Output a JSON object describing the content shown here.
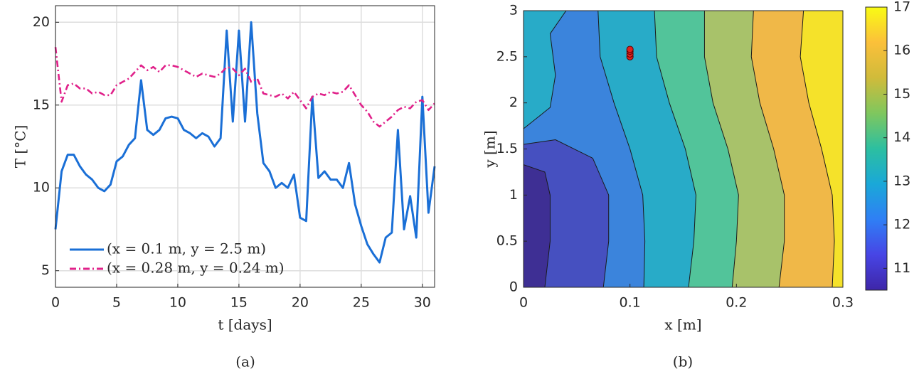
{
  "chart_data": [
    {
      "type": "line",
      "y_label": "T [°C]",
      "x_label": "t [days]",
      "caption": "(a)",
      "xlim": [
        0,
        31
      ],
      "ylim": [
        4,
        21
      ],
      "xticks": [
        0,
        5,
        10,
        15,
        20,
        25,
        30
      ],
      "yticks": [
        5,
        10,
        15,
        20
      ],
      "grid": true,
      "legend": "lower left",
      "x": [
        0,
        0.5,
        1,
        1.5,
        2,
        2.5,
        3,
        3.5,
        4,
        4.5,
        5,
        5.5,
        6,
        6.5,
        7,
        7.5,
        8,
        8.5,
        9,
        9.5,
        10,
        10.5,
        11,
        11.5,
        12,
        12.5,
        13,
        13.5,
        14,
        14.5,
        15,
        15.5,
        16,
        16.5,
        17,
        17.5,
        18,
        18.5,
        19,
        19.5,
        20,
        20.5,
        21,
        21.5,
        22,
        22.5,
        23,
        23.5,
        24,
        24.5,
        25,
        25.5,
        26,
        26.5,
        27,
        27.5,
        28,
        28.5,
        29,
        29.5,
        30,
        30.5,
        31
      ],
      "series": [
        {
          "name": "(x = 0.1 m, y = 2.5 m)",
          "color": "#1a6fd6",
          "style": "solid",
          "values": [
            7.5,
            11,
            12,
            12,
            11.3,
            10.8,
            10.5,
            10,
            9.8,
            10.2,
            11.6,
            11.9,
            12.6,
            13,
            16.5,
            13.5,
            13.2,
            13.5,
            14.2,
            14.3,
            14.2,
            13.5,
            13.3,
            13,
            13.3,
            13.1,
            12.5,
            13,
            19.5,
            14,
            19.5,
            14,
            20,
            14.5,
            11.5,
            11,
            10,
            10.3,
            10,
            10.8,
            8.2,
            8,
            15.5,
            10.6,
            11,
            10.5,
            10.5,
            10,
            11.5,
            9,
            7.7,
            6.6,
            6,
            5.5,
            7,
            7.3,
            13.5,
            7.5,
            9.5,
            7,
            15.5,
            8.5,
            11.3
          ]
        },
        {
          "name": "(x = 0.28 m, y = 0.24 m)",
          "color": "#e0218a",
          "style": "dashdot",
          "values": [
            18.5,
            15.2,
            16.2,
            16.3,
            16,
            16,
            15.7,
            15.8,
            15.6,
            15.6,
            16.2,
            16.4,
            16.6,
            17,
            17.4,
            17.1,
            17.3,
            17,
            17.4,
            17.4,
            17.3,
            17.1,
            16.9,
            16.7,
            16.9,
            16.8,
            16.7,
            16.9,
            17.3,
            17.2,
            16.8,
            17.2,
            16.4,
            16.6,
            15.7,
            15.6,
            15.5,
            15.7,
            15.4,
            15.8,
            15.3,
            14.8,
            15.5,
            15.7,
            15.6,
            15.8,
            15.7,
            15.8,
            16.2,
            15.6,
            15,
            14.6,
            14,
            13.7,
            14,
            14.3,
            14.7,
            14.9,
            14.8,
            15.2,
            15.3,
            14.7,
            15.1
          ]
        }
      ]
    },
    {
      "type": "contour",
      "x_label": "x [m]",
      "y_label": "y [m]",
      "caption": "(b)",
      "xlim": [
        0,
        0.3
      ],
      "ylim": [
        0,
        3
      ],
      "xticks": [
        0,
        0.1,
        0.2,
        0.3
      ],
      "yticks": [
        0,
        0.5,
        1,
        1.5,
        2,
        2.5,
        3
      ],
      "base_color": "#3e2f94",
      "regions": [
        {
          "level": 11,
          "color": "#4650c0",
          "x": [
            0.02,
            0.025,
            0.025,
            0.02,
            0,
            0,
            0.3,
            0.3
          ],
          "y": [
            0,
            0.5,
            1,
            1.25,
            1.33,
            3,
            3,
            0
          ]
        },
        {
          "level": 11.75,
          "color": "#3b84dc",
          "x": [
            0.075,
            0.08,
            0.08,
            0.065,
            0.03,
            0,
            0,
            0.3,
            0.3
          ],
          "y": [
            0,
            0.5,
            1,
            1.4,
            1.6,
            1.55,
            3,
            3,
            0
          ]
        },
        {
          "level": 12.5,
          "color": "#28abc8",
          "x": [
            0,
            0.025,
            0.03,
            0.025,
            0.04,
            0
          ],
          "y": [
            1.72,
            1.95,
            2.3,
            2.75,
            3,
            3
          ]
        },
        {
          "level": 12.5,
          "color": "#28abc8",
          "x": [
            0.113,
            0.114,
            0.112,
            0.1,
            0.085,
            0.072,
            0.07,
            0.3,
            0.3
          ],
          "y": [
            0,
            0.5,
            1,
            1.5,
            2,
            2.5,
            3,
            3,
            0
          ]
        },
        {
          "level": 13.25,
          "color": "#52c49a",
          "x": [
            0.155,
            0.16,
            0.162,
            0.152,
            0.137,
            0.125,
            0.123,
            0.3,
            0.3
          ],
          "y": [
            0,
            0.5,
            1,
            1.5,
            2,
            2.5,
            3,
            3,
            0
          ]
        },
        {
          "level": 14,
          "color": "#a8c26a",
          "x": [
            0.196,
            0.2,
            0.202,
            0.192,
            0.178,
            0.17,
            0.17,
            0.3,
            0.3
          ],
          "y": [
            0,
            0.5,
            1,
            1.5,
            2,
            2.5,
            3,
            3,
            0
          ]
        },
        {
          "level": 14.75,
          "color": "#f0b848",
          "x": [
            0.24,
            0.245,
            0.245,
            0.235,
            0.222,
            0.214,
            0.216,
            0.3,
            0.3
          ],
          "y": [
            0,
            0.5,
            1,
            1.5,
            2,
            2.5,
            3,
            3,
            0
          ]
        },
        {
          "level": 15.5,
          "color": "#f5e22a",
          "x": [
            0.29,
            0.292,
            0.29,
            0.28,
            0.268,
            0.26,
            0.263,
            0.3,
            0.3
          ],
          "y": [
            0,
            0.5,
            1,
            1.5,
            2,
            2.5,
            3,
            3,
            0
          ]
        }
      ],
      "points": {
        "color": "#e0221d",
        "x": [
          0.1,
          0.1,
          0.1,
          0.1
        ],
        "y": [
          2.5,
          2.53,
          2.56,
          2.58
        ]
      },
      "clim": [
        10.5,
        17
      ],
      "cticks": [
        11,
        12,
        13,
        14,
        15,
        16,
        17
      ],
      "colormap": [
        "#3e26a8",
        "#4745e5",
        "#2f7ff5",
        "#1aa8d8",
        "#2cbfa0",
        "#7fc75e",
        "#d0bb3a",
        "#fbc03a",
        "#f9fb14"
      ]
    }
  ]
}
